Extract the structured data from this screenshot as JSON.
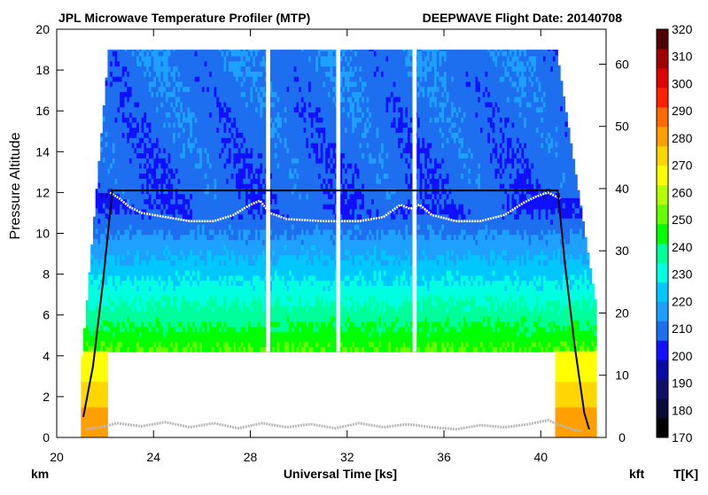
{
  "chart_data": {
    "type": "heatmap",
    "title_left": "JPL Microwave Temperature Profiler (MTP)",
    "title_right": "DEEPWAVE  Flight Date: 20140708",
    "xlabel": "Universal Time [ks]",
    "ylabel": "Pressure Altitude",
    "y_unit_left": "km",
    "y_unit_right": "kft",
    "colorbar_unit": "T[K]",
    "xlim": [
      20,
      42.7
    ],
    "xticks": [
      20,
      24,
      28,
      32,
      36,
      40
    ],
    "ylim_km": [
      0,
      20
    ],
    "yticks_km": [
      0,
      2,
      4,
      6,
      8,
      10,
      12,
      14,
      16,
      18,
      20
    ],
    "yticks_kft": [
      0,
      10,
      20,
      30,
      40,
      50,
      60
    ],
    "colorbar": {
      "ticks": [
        170,
        180,
        190,
        200,
        210,
        220,
        230,
        240,
        250,
        260,
        270,
        280,
        290,
        300,
        310,
        320
      ],
      "colors": [
        "#000000",
        "#0a0a3a",
        "#101068",
        "#0a0aa8",
        "#1010ff",
        "#1e6ef0",
        "#1ea0ff",
        "#00c8ff",
        "#00ffe0",
        "#00ff9a",
        "#00ff00",
        "#66ff00",
        "#b4ff00",
        "#ffff00",
        "#ffd700",
        "#ffa000",
        "#ff6a00",
        "#ff2000",
        "#e00000",
        "#a00000",
        "#500000"
      ]
    },
    "data_gaps_ks": [
      [
        28.65,
        28.82
      ],
      [
        31.55,
        31.72
      ],
      [
        34.7,
        34.87
      ]
    ],
    "curtain_top_km": 19,
    "curtain_bottom_km": 4.2,
    "flight_altitude_km": [
      [
        21.1,
        1.0
      ],
      [
        21.5,
        3.5
      ],
      [
        21.9,
        7.5
      ],
      [
        22.3,
        12.1
      ],
      [
        40.7,
        12.1
      ],
      [
        41.0,
        8.5
      ],
      [
        41.4,
        4.5
      ],
      [
        41.8,
        1.2
      ],
      [
        42.0,
        0.4
      ]
    ],
    "tropopause_km": [
      [
        22.2,
        12.0
      ],
      [
        22.6,
        11.7
      ],
      [
        23.0,
        11.3
      ],
      [
        23.5,
        11.0
      ],
      [
        24.5,
        10.8
      ],
      [
        25.5,
        10.6
      ],
      [
        26.5,
        10.6
      ],
      [
        27.3,
        10.9
      ],
      [
        28.0,
        11.4
      ],
      [
        28.4,
        11.6
      ],
      [
        28.8,
        11.0
      ],
      [
        29.5,
        10.7
      ],
      [
        31.0,
        10.6
      ],
      [
        32.5,
        10.6
      ],
      [
        33.5,
        10.8
      ],
      [
        34.2,
        11.4
      ],
      [
        34.6,
        11.2
      ],
      [
        35.0,
        11.4
      ],
      [
        35.5,
        10.9
      ],
      [
        36.5,
        10.6
      ],
      [
        37.5,
        10.6
      ],
      [
        38.5,
        10.9
      ],
      [
        39.3,
        11.5
      ],
      [
        39.8,
        11.8
      ],
      [
        40.3,
        12.0
      ],
      [
        40.8,
        11.7
      ]
    ],
    "ground_km": [
      [
        21.2,
        0.4
      ],
      [
        22.0,
        0.55
      ],
      [
        22.5,
        0.7
      ],
      [
        23.5,
        0.55
      ],
      [
        24.5,
        0.75
      ],
      [
        25.5,
        0.5
      ],
      [
        26.5,
        0.7
      ],
      [
        27.5,
        0.45
      ],
      [
        28.5,
        0.7
      ],
      [
        29.5,
        0.5
      ],
      [
        30.5,
        0.65
      ],
      [
        31.5,
        0.45
      ],
      [
        32.5,
        0.7
      ],
      [
        33.5,
        0.5
      ],
      [
        34.5,
        0.65
      ],
      [
        35.5,
        0.5
      ],
      [
        36.5,
        0.4
      ],
      [
        37.5,
        0.6
      ],
      [
        38.5,
        0.5
      ],
      [
        39.5,
        0.65
      ],
      [
        40.3,
        0.85
      ],
      [
        40.8,
        0.6
      ],
      [
        41.3,
        0.4
      ],
      [
        41.7,
        0.3
      ]
    ]
  }
}
